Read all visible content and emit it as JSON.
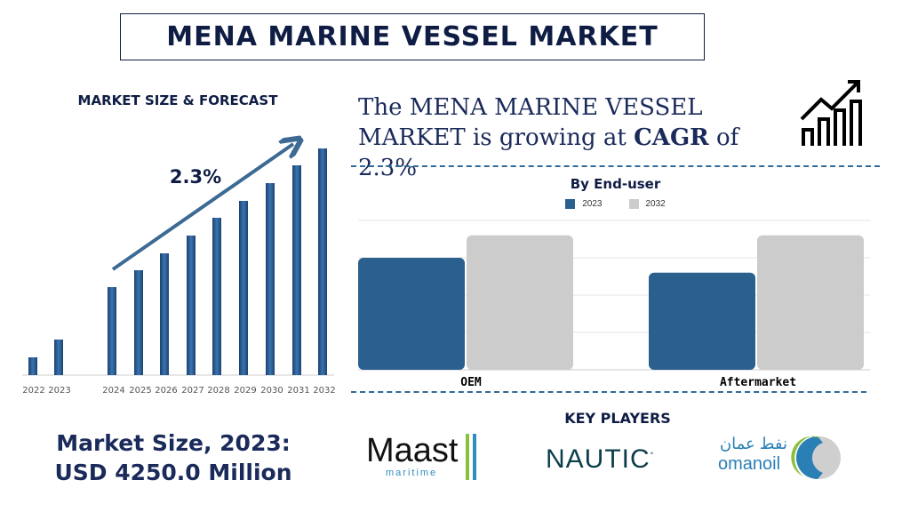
{
  "title": "MENA MARINE VESSEL MARKET",
  "left_heading": "MARKET SIZE & FORECAST",
  "headline": {
    "pre": "The MENA MARINE VESSEL MARKET is growing at ",
    "cagr_word": "CAGR",
    "mid": " of ",
    "rate": "2.3%"
  },
  "market_size": {
    "line1": "Market Size, 2023:",
    "line2": "USD 4250.0 Million"
  },
  "key_players": {
    "heading": "KEY PLAYERS",
    "players": [
      "Maast maritime",
      "NAUTIC",
      "omanoil"
    ],
    "omanoil_arabic": "نفط عمان"
  },
  "icons": {
    "growth": "bar-growth-arrow-icon"
  },
  "colors": {
    "navy": "#0f1d44",
    "bar_blue": "#2b5f8e",
    "grey": "#cccccc",
    "accent": "#2f6a9a"
  },
  "chart_data": [
    {
      "type": "bar",
      "title": "",
      "annotation": "2.3%",
      "categories": [
        "2022",
        "2023",
        "2024",
        "2025",
        "2026",
        "2027",
        "2028",
        "2029",
        "2030",
        "2031",
        "2032"
      ],
      "values": [
        20,
        40,
        99,
        118,
        137,
        157,
        177,
        196,
        216,
        236,
        255
      ],
      "ylim": [
        0,
        260
      ],
      "grid": false
    },
    {
      "type": "bar",
      "title": "By End-user",
      "categories": [
        "OEM",
        "Aftermarket"
      ],
      "series": [
        {
          "name": "2023",
          "values": [
            3.0,
            2.6
          ],
          "color": "#2b5f8e"
        },
        {
          "name": "2032",
          "values": [
            3.6,
            3.6
          ],
          "color": "#cccccc"
        }
      ],
      "ylim": [
        0,
        4
      ],
      "grid": true,
      "legend": "top"
    }
  ]
}
